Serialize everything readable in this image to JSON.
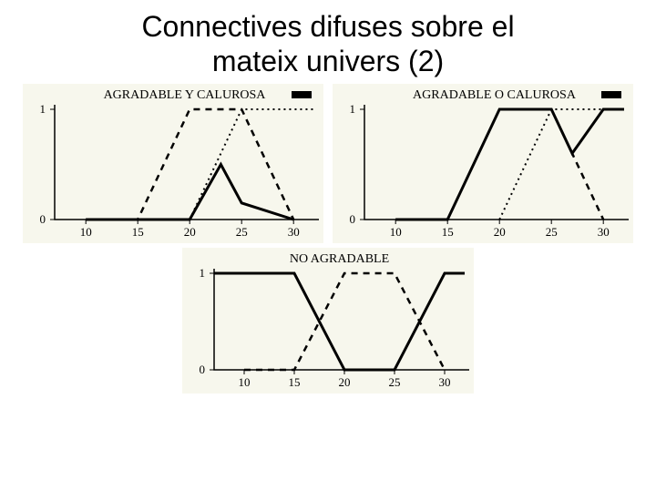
{
  "title_line1": "Connectives difuses sobre el",
  "title_line2": "mateix univers (2)",
  "chart_bg": "#f7f7ed",
  "axis_color": "#000000",
  "solid_width": 3,
  "dash_width": 2.5,
  "dot_width": 2,
  "chart1": {
    "title": "AGRADABLE  Y  CALUROSA",
    "xlim": [
      7,
      32
    ],
    "ylim": [
      0,
      1
    ],
    "xticks": [
      10,
      15,
      20,
      25,
      30
    ],
    "yticks": [
      0,
      1
    ],
    "dashed": [
      [
        10,
        0
      ],
      [
        15,
        0
      ],
      [
        20,
        1
      ],
      [
        25,
        1
      ],
      [
        30,
        0
      ]
    ],
    "dotted": [
      [
        20,
        0
      ],
      [
        25,
        1
      ],
      [
        30,
        1
      ],
      [
        32,
        1
      ]
    ],
    "solid": [
      [
        10,
        0
      ],
      [
        20,
        0
      ],
      [
        23,
        0.5
      ],
      [
        25,
        0.15
      ],
      [
        30,
        0
      ]
    ]
  },
  "chart2": {
    "title": "AGRADABLE  O  CALUROSA",
    "xlim": [
      7,
      32
    ],
    "ylim": [
      0,
      1
    ],
    "xticks": [
      10,
      15,
      20,
      25,
      30
    ],
    "yticks": [
      0,
      1
    ],
    "dashed": [
      [
        10,
        0
      ],
      [
        15,
        0
      ],
      [
        20,
        1
      ],
      [
        25,
        1
      ],
      [
        30,
        0
      ]
    ],
    "dotted": [
      [
        20,
        0
      ],
      [
        25,
        1
      ],
      [
        30,
        1
      ],
      [
        32,
        1
      ]
    ],
    "solid": [
      [
        10,
        0
      ],
      [
        15,
        0
      ],
      [
        20,
        1
      ],
      [
        25,
        1
      ],
      [
        27,
        0.6
      ],
      [
        30,
        1
      ],
      [
        32,
        1
      ]
    ]
  },
  "chart3": {
    "title": "NO  AGRADABLE",
    "xlim": [
      7,
      32
    ],
    "ylim": [
      0,
      1
    ],
    "xticks": [
      10,
      15,
      20,
      25,
      30
    ],
    "yticks": [
      0,
      1
    ],
    "dashed": [
      [
        10,
        0
      ],
      [
        15,
        0
      ],
      [
        20,
        1
      ],
      [
        25,
        1
      ],
      [
        30,
        0
      ]
    ],
    "solid": [
      [
        7,
        1
      ],
      [
        15,
        1
      ],
      [
        20,
        0
      ],
      [
        25,
        0
      ],
      [
        30,
        1
      ],
      [
        32,
        1
      ]
    ]
  }
}
